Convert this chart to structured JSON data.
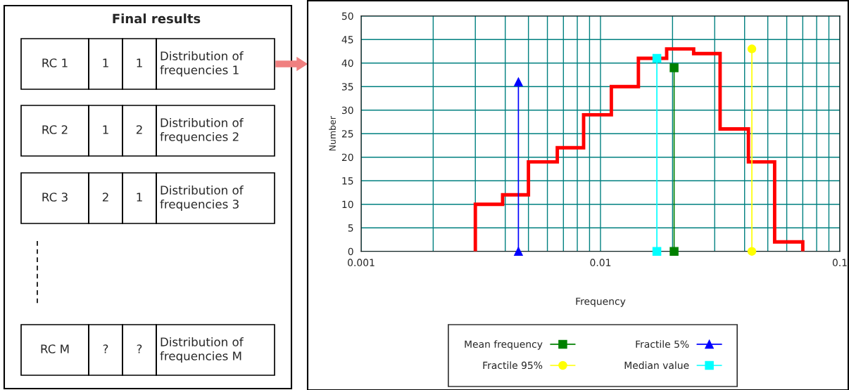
{
  "chart_data": [
    {
      "type": "other",
      "title": "Final results",
      "annotations": [
        "RC 1",
        "1",
        "1",
        "Distribution of\nfrequencies 1",
        "RC 2",
        "1",
        "2",
        "Distribution of\nfrequencies 2",
        "RC 3",
        "2",
        "1",
        "Distribution of\nfrequencies 3",
        "RC M",
        "?",
        "?",
        "Distribution of\nfrequencies M"
      ]
    },
    {
      "type": "histogram",
      "xlabel": "Frequency",
      "ylabel": "Number",
      "log": "x",
      "bins": [
        0.003,
        0.0039,
        0.005,
        0.0066,
        0.0085,
        0.0111,
        0.0144,
        0.0189,
        0.0245,
        0.0316,
        0.0415,
        0.0534,
        0.07
      ],
      "values": [
        10,
        12,
        19,
        22,
        29,
        35,
        41,
        43,
        42,
        26,
        19,
        2
      ],
      "color": "#ff0000",
      "series": [
        {
          "type": "line",
          "name": "Mean frequency",
          "color": "#008000",
          "marker": "square",
          "x": [
            0.0203,
            0.0203
          ],
          "values": [
            0,
            39
          ]
        },
        {
          "type": "line",
          "name": "Fractile 95%",
          "color": "#ffff00",
          "marker": "circle",
          "x": [
            0.0429,
            0.0429
          ],
          "values": [
            0,
            43
          ]
        },
        {
          "type": "line",
          "name": "Fractile 5%",
          "color": "#0000ff",
          "marker": "triangle",
          "x": [
            0.00454,
            0.00454
          ],
          "values": [
            0,
            36
          ]
        },
        {
          "type": "line",
          "name": "Median value",
          "color": "#00ffff",
          "marker": "square",
          "x": [
            0.0172,
            0.0172
          ],
          "values": [
            0,
            41
          ]
        }
      ],
      "xlim": [
        0.001,
        0.1
      ],
      "ylim": [
        0,
        50
      ],
      "xticks": [
        0.001,
        {
          "value": 0.002,
          "label": null
        },
        {
          "value": 0.003,
          "label": null
        },
        {
          "value": 0.004,
          "label": null
        },
        {
          "value": 0.005,
          "label": null
        },
        {
          "value": 0.006,
          "label": null
        },
        {
          "value": 0.007,
          "label": null
        },
        {
          "value": 0.008,
          "label": null
        },
        {
          "value": 0.009,
          "label": null
        },
        0.01,
        {
          "value": 0.02,
          "label": null
        },
        {
          "value": 0.03,
          "label": null
        },
        {
          "value": 0.04,
          "label": null
        },
        {
          "value": 0.05,
          "label": null
        },
        {
          "value": 0.06,
          "label": null
        },
        {
          "value": 0.07,
          "label": null
        },
        {
          "value": 0.08,
          "label": null
        },
        {
          "value": 0.09,
          "label": null
        },
        0.1
      ],
      "yticks": [
        0,
        5,
        10,
        15,
        20,
        25,
        30,
        35,
        40,
        45,
        50
      ],
      "grid": true,
      "legend": "bottom"
    }
  ]
}
